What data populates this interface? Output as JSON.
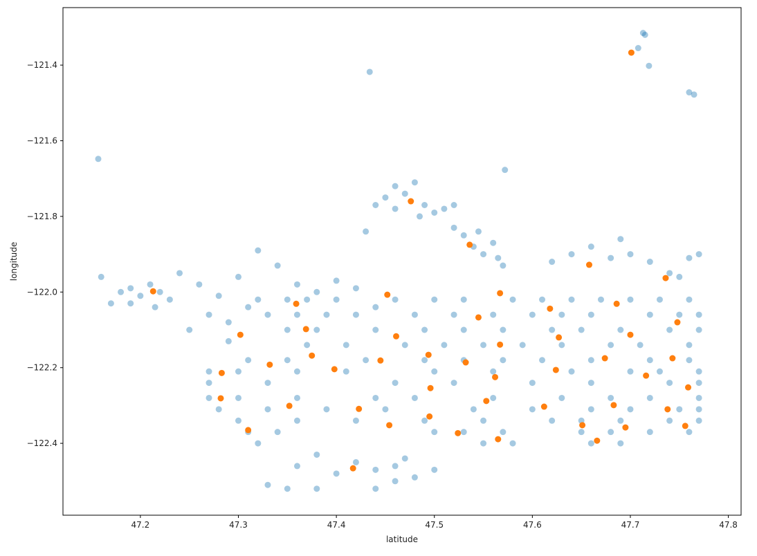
{
  "chart_data": {
    "type": "scatter",
    "x_label": "latitude",
    "y_label": "longitude",
    "xlim": [
      47.121,
      47.813
    ],
    "ylim": [
      -122.59,
      -121.248
    ],
    "xticks": [
      47.2,
      47.3,
      47.4,
      47.5,
      47.6,
      47.7,
      47.8
    ],
    "yticks": [
      {
        "value": -122.4,
        "label": "−122.4"
      },
      {
        "value": -122.2,
        "label": "−122.2"
      },
      {
        "value": -122.0,
        "label": "−122.0"
      },
      {
        "value": -121.8,
        "label": "−121.8"
      },
      {
        "value": -121.6,
        "label": "−121.6"
      },
      {
        "value": -121.4,
        "label": "−121.4"
      }
    ],
    "grid": false,
    "series": [
      {
        "color": "#1f77b4",
        "opacity": 0.4,
        "x": [
          47.157,
          47.434,
          47.572,
          47.713,
          47.715,
          47.719,
          47.76,
          47.765,
          47.708,
          47.18,
          47.19,
          47.2,
          47.21,
          47.22,
          47.23,
          47.17,
          47.16,
          47.19,
          47.215,
          47.44,
          47.45,
          47.46,
          47.47,
          47.48,
          47.49,
          47.5,
          47.46,
          47.485,
          47.51,
          47.52,
          47.43,
          47.52,
          47.53,
          47.54,
          47.55,
          47.56,
          47.57,
          47.545,
          47.565,
          47.62,
          47.64,
          47.66,
          47.68,
          47.7,
          47.72,
          47.74,
          47.76,
          47.77,
          47.69,
          47.75,
          47.24,
          47.26,
          47.28,
          47.3,
          47.32,
          47.34,
          47.36,
          47.38,
          47.4,
          47.42,
          47.44,
          47.27,
          47.29,
          47.25,
          47.29,
          47.31,
          47.32,
          47.35,
          47.37,
          47.4,
          47.46,
          47.5,
          47.53,
          47.58,
          47.61,
          47.64,
          47.67,
          47.7,
          47.73,
          47.76,
          47.33,
          47.36,
          47.39,
          47.42,
          47.48,
          47.52,
          47.56,
          47.6,
          47.63,
          47.66,
          47.72,
          47.75,
          47.77,
          47.35,
          47.38,
          47.44,
          47.49,
          47.53,
          47.57,
          47.62,
          47.65,
          47.69,
          47.74,
          47.77,
          47.37,
          47.41,
          47.47,
          47.51,
          47.55,
          47.59,
          47.63,
          47.68,
          47.71,
          47.76,
          47.31,
          47.35,
          47.43,
          47.49,
          47.53,
          47.57,
          47.61,
          47.66,
          47.72,
          47.76,
          47.27,
          47.3,
          47.36,
          47.41,
          47.5,
          47.56,
          47.64,
          47.7,
          47.73,
          47.77,
          47.27,
          47.33,
          47.46,
          47.52,
          47.6,
          47.66,
          47.74,
          47.77,
          47.27,
          47.3,
          47.36,
          47.44,
          47.48,
          47.56,
          47.63,
          47.68,
          47.72,
          47.77,
          47.28,
          47.33,
          47.39,
          47.45,
          47.54,
          47.6,
          47.66,
          47.7,
          47.75,
          47.77,
          47.3,
          47.36,
          47.42,
          47.49,
          47.55,
          47.62,
          47.65,
          47.69,
          47.74,
          47.77,
          47.31,
          47.34,
          47.5,
          47.53,
          47.57,
          47.65,
          47.68,
          47.72,
          47.76,
          47.32,
          47.55,
          47.58,
          47.66,
          47.69,
          47.36,
          47.38,
          47.4,
          47.42,
          47.44,
          47.46,
          47.48,
          47.5,
          47.33,
          47.35,
          47.38,
          47.44,
          47.46,
          47.47
        ],
        "values": [
          -121.648,
          -121.418,
          -121.677,
          -121.315,
          -121.32,
          -121.402,
          -121.472,
          -121.478,
          -121.355,
          -122.0,
          -121.99,
          -122.01,
          -121.98,
          -122.0,
          -122.02,
          -122.03,
          -121.96,
          -122.03,
          -122.04,
          -121.77,
          -121.75,
          -121.78,
          -121.74,
          -121.71,
          -121.77,
          -121.79,
          -121.72,
          -121.8,
          -121.78,
          -121.77,
          -121.84,
          -121.83,
          -121.85,
          -121.88,
          -121.9,
          -121.87,
          -121.93,
          -121.84,
          -121.91,
          -121.92,
          -121.9,
          -121.88,
          -121.91,
          -121.9,
          -121.92,
          -121.95,
          -121.91,
          -121.9,
          -121.86,
          -121.96,
          -121.95,
          -121.98,
          -122.01,
          -121.96,
          -121.89,
          -121.93,
          -121.98,
          -122.0,
          -121.97,
          -121.99,
          -122.04,
          -122.06,
          -122.08,
          -122.1,
          -122.13,
          -122.04,
          -122.02,
          -122.02,
          -122.02,
          -122.02,
          -122.02,
          -122.02,
          -122.02,
          -122.02,
          -122.02,
          -122.02,
          -122.02,
          -122.02,
          -122.02,
          -122.02,
          -122.06,
          -122.06,
          -122.06,
          -122.06,
          -122.06,
          -122.06,
          -122.06,
          -122.06,
          -122.06,
          -122.06,
          -122.06,
          -122.06,
          -122.06,
          -122.1,
          -122.1,
          -122.1,
          -122.1,
          -122.1,
          -122.1,
          -122.1,
          -122.1,
          -122.1,
          -122.1,
          -122.1,
          -122.14,
          -122.14,
          -122.14,
          -122.14,
          -122.14,
          -122.14,
          -122.14,
          -122.14,
          -122.14,
          -122.14,
          -122.18,
          -122.18,
          -122.18,
          -122.18,
          -122.18,
          -122.18,
          -122.18,
          -122.18,
          -122.18,
          -122.18,
          -122.21,
          -122.21,
          -122.21,
          -122.21,
          -122.21,
          -122.21,
          -122.21,
          -122.21,
          -122.21,
          -122.21,
          -122.24,
          -122.24,
          -122.24,
          -122.24,
          -122.24,
          -122.24,
          -122.24,
          -122.24,
          -122.28,
          -122.28,
          -122.28,
          -122.28,
          -122.28,
          -122.28,
          -122.28,
          -122.28,
          -122.28,
          -122.28,
          -122.31,
          -122.31,
          -122.31,
          -122.31,
          -122.31,
          -122.31,
          -122.31,
          -122.31,
          -122.31,
          -122.31,
          -122.34,
          -122.34,
          -122.34,
          -122.34,
          -122.34,
          -122.34,
          -122.34,
          -122.34,
          -122.34,
          -122.34,
          -122.37,
          -122.37,
          -122.37,
          -122.37,
          -122.37,
          -122.37,
          -122.37,
          -122.37,
          -122.37,
          -122.4,
          -122.4,
          -122.4,
          -122.4,
          -122.4,
          -122.46,
          -122.43,
          -122.48,
          -122.45,
          -122.47,
          -122.46,
          -122.49,
          -122.47,
          -122.51,
          -122.52,
          -122.52,
          -122.52,
          -122.5,
          -122.44
        ]
      },
      {
        "color": "#ff7f0e",
        "opacity": 1,
        "x": [
          47.701,
          47.476,
          47.536,
          47.658,
          47.736,
          47.213,
          47.452,
          47.359,
          47.567,
          47.618,
          47.686,
          47.545,
          47.748,
          47.369,
          47.461,
          47.302,
          47.7,
          47.627,
          47.567,
          47.375,
          47.494,
          47.445,
          47.532,
          47.674,
          47.743,
          47.332,
          47.398,
          47.624,
          47.283,
          47.562,
          47.716,
          47.759,
          47.496,
          47.282,
          47.553,
          47.352,
          47.683,
          47.612,
          47.423,
          47.738,
          47.495,
          47.454,
          47.651,
          47.695,
          47.756,
          47.31,
          47.524,
          47.565,
          47.666,
          47.417
        ],
        "values": [
          -121.367,
          -121.76,
          -121.875,
          -121.928,
          -121.963,
          -121.998,
          -122.007,
          -122.031,
          -122.003,
          -122.044,
          -122.031,
          -122.067,
          -122.08,
          -122.098,
          -122.117,
          -122.113,
          -122.113,
          -122.12,
          -122.139,
          -122.168,
          -122.166,
          -122.181,
          -122.186,
          -122.175,
          -122.175,
          -122.192,
          -122.204,
          -122.206,
          -122.214,
          -122.225,
          -122.221,
          -122.252,
          -122.254,
          -122.281,
          -122.288,
          -122.301,
          -122.299,
          -122.303,
          -122.309,
          -122.31,
          -122.329,
          -122.352,
          -122.352,
          -122.358,
          -122.354,
          -122.365,
          -122.373,
          -122.389,
          -122.393,
          -122.466
        ]
      }
    ]
  }
}
